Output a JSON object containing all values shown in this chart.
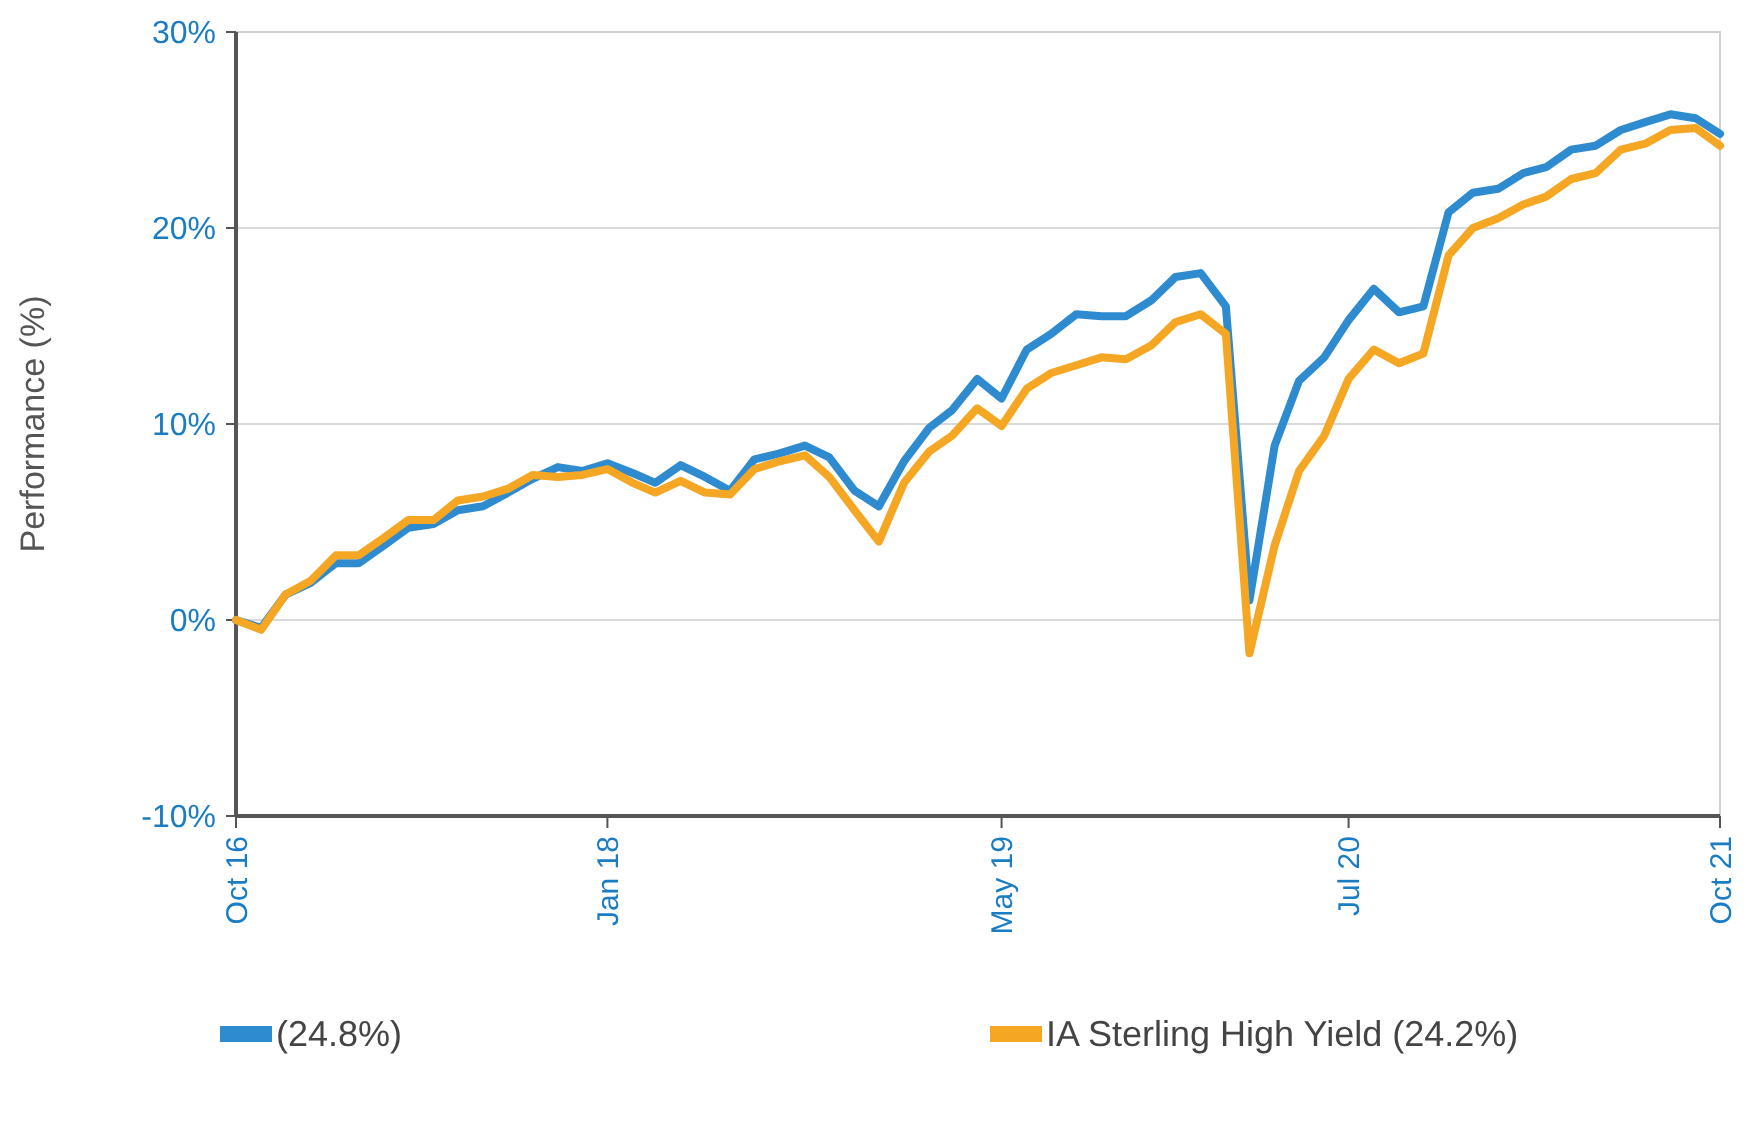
{
  "chart_data": {
    "type": "line",
    "ylabel": "Performance (%)",
    "x": [
      "2016-10",
      "2016-11",
      "2016-12",
      "2017-01",
      "2017-02",
      "2017-03",
      "2017-04",
      "2017-05",
      "2017-06",
      "2017-07",
      "2017-08",
      "2017-09",
      "2017-10",
      "2017-11",
      "2017-12",
      "2018-01",
      "2018-02",
      "2018-03",
      "2018-04",
      "2018-05",
      "2018-06",
      "2018-07",
      "2018-08",
      "2018-09",
      "2018-10",
      "2018-11",
      "2018-12",
      "2019-01",
      "2019-02",
      "2019-03",
      "2019-04",
      "2019-05",
      "2019-06",
      "2019-07",
      "2019-08",
      "2019-09",
      "2019-10",
      "2019-11",
      "2019-12",
      "2020-01",
      "2020-02",
      "2020-03",
      "2020-04",
      "2020-05",
      "2020-06",
      "2020-07",
      "2020-08",
      "2020-09",
      "2020-10",
      "2020-11",
      "2020-12",
      "2021-01",
      "2021-02",
      "2021-03",
      "2021-04",
      "2021-05",
      "2021-06",
      "2021-07",
      "2021-08",
      "2021-09",
      "2021-10"
    ],
    "series": [
      {
        "name": "(24.8%)",
        "color": "#2e8bd0",
        "values": [
          0,
          -0.4,
          1.3,
          1.9,
          2.9,
          2.9,
          3.8,
          4.7,
          4.9,
          5.6,
          5.8,
          6.5,
          7.2,
          7.8,
          7.6,
          8.0,
          7.5,
          7.0,
          7.9,
          7.3,
          6.6,
          8.2,
          8.5,
          8.9,
          8.3,
          6.6,
          5.8,
          8.1,
          9.8,
          10.7,
          12.3,
          11.3,
          13.8,
          14.6,
          15.6,
          15.5,
          15.5,
          16.3,
          17.5,
          17.7,
          16.0,
          1.0,
          8.9,
          12.2,
          13.4,
          15.3,
          16.9,
          15.7,
          16.0,
          20.8,
          21.8,
          22.0,
          22.8,
          23.1,
          24.0,
          24.2,
          25.0,
          25.4,
          25.8,
          25.6,
          24.8
        ]
      },
      {
        "name": "IA Sterling High Yield (24.2%)",
        "color": "#f5a623",
        "values": [
          0,
          -0.5,
          1.3,
          2.0,
          3.3,
          3.3,
          4.2,
          5.1,
          5.1,
          6.1,
          6.3,
          6.7,
          7.4,
          7.3,
          7.4,
          7.7,
          7.0,
          6.5,
          7.1,
          6.5,
          6.4,
          7.7,
          8.1,
          8.4,
          7.3,
          5.6,
          4.0,
          7.0,
          8.6,
          9.4,
          10.8,
          9.9,
          11.8,
          12.6,
          13.0,
          13.4,
          13.3,
          14.0,
          15.2,
          15.6,
          14.6,
          -1.7,
          3.8,
          7.6,
          9.4,
          12.3,
          13.8,
          13.1,
          13.6,
          18.6,
          20.0,
          20.5,
          21.2,
          21.6,
          22.5,
          22.8,
          24.0,
          24.3,
          25.0,
          25.1,
          24.2
        ]
      }
    ],
    "xlim": [
      "2016-10",
      "2021-10"
    ],
    "xticks": [
      {
        "value": "2016-10",
        "label": "Oct 16"
      },
      {
        "value": "2018-01",
        "label": "Jan 18"
      },
      {
        "value": "2019-05",
        "label": "May 19"
      },
      {
        "value": "2020-07",
        "label": "Jul 20"
      },
      {
        "value": "2021-10",
        "label": "Oct 21"
      }
    ],
    "ylim": [
      -10,
      30
    ],
    "yticks": [
      {
        "value": -10,
        "label": "-10%"
      },
      {
        "value": 0,
        "label": "0%"
      },
      {
        "value": 10,
        "label": "10%"
      },
      {
        "value": 20,
        "label": "20%"
      },
      {
        "value": 30,
        "label": "30%"
      }
    ],
    "grid": "y",
    "legend": "bottom",
    "marker": "none",
    "line_style": "solid"
  }
}
